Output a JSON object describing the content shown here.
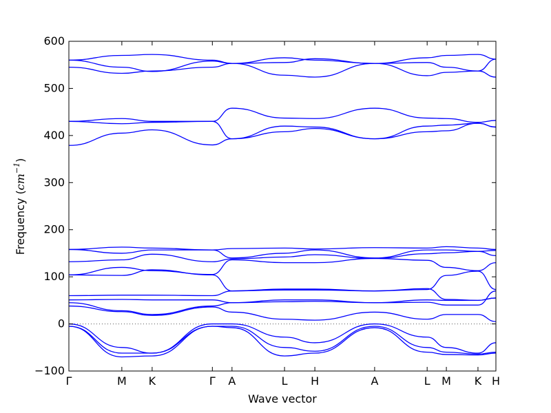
{
  "chart_data": {
    "type": "line",
    "title": "",
    "xlabel": "Wave vector",
    "ylabel_text": "Frequency (",
    "ylabel_unit": "cm",
    "ylabel_exp": "−1",
    "ylabel_close": ")",
    "ylim": [
      -100,
      600
    ],
    "yticks": [
      -100,
      0,
      100,
      200,
      300,
      400,
      500,
      600
    ],
    "ytick_labels": [
      "−100",
      "0",
      "100",
      "200",
      "300",
      "400",
      "500",
      "600"
    ],
    "x_range": [
      0,
      1
    ],
    "high_symmetry_points": [
      {
        "label": "Γ",
        "x": 0.0
      },
      {
        "label": "M",
        "x": 0.124
      },
      {
        "label": "K",
        "x": 0.195
      },
      {
        "label": "Γ",
        "x": 0.336
      },
      {
        "label": "A",
        "x": 0.382
      },
      {
        "label": "L",
        "x": 0.505
      },
      {
        "label": "H",
        "x": 0.576
      },
      {
        "label": "A",
        "x": 0.716
      },
      {
        "label": "L",
        "x": 0.839
      },
      {
        "label": "M",
        "x": 0.884
      },
      {
        "label": "K",
        "x": 0.958
      },
      {
        "label": "H",
        "x": 1.0
      }
    ],
    "zero_line": true,
    "grid": false,
    "line_color": "#0000ff",
    "series": [
      {
        "x": [
          0,
          0.124,
          0.195,
          0.336,
          0.382,
          0.505,
          0.576,
          0.716,
          0.839,
          0.884,
          0.958,
          1.0
        ],
        "y": [
          560,
          570,
          572,
          560,
          553,
          528,
          524,
          553,
          527,
          534,
          537,
          562
        ]
      },
      {
        "x": [
          0,
          0.124,
          0.195,
          0.336,
          0.382,
          0.505,
          0.576,
          0.716,
          0.839,
          0.884,
          0.958,
          1.0
        ],
        "y": [
          560,
          545,
          536,
          558,
          553,
          565,
          560,
          553,
          565,
          570,
          572,
          562
        ]
      },
      {
        "x": [
          0,
          0.124,
          0.195,
          0.336,
          0.382,
          0.505,
          0.576,
          0.716,
          0.839,
          0.884,
          0.958,
          1.0
        ],
        "y": [
          545,
          532,
          537,
          545,
          553,
          555,
          563,
          553,
          555,
          545,
          537,
          524
        ]
      },
      {
        "x": [
          0,
          0.124,
          0.195,
          0.336,
          0.382,
          0.505,
          0.576,
          0.716,
          0.839,
          0.884,
          0.958,
          1.0
        ],
        "y": [
          430,
          436,
          430,
          430,
          458,
          437,
          436,
          458,
          437,
          436,
          428,
          432
        ]
      },
      {
        "x": [
          0,
          0.124,
          0.195,
          0.336,
          0.382,
          0.505,
          0.576,
          0.716,
          0.839,
          0.884,
          0.958,
          1.0
        ],
        "y": [
          430,
          425,
          428,
          430,
          393,
          420,
          418,
          393,
          420,
          422,
          426,
          418
        ]
      },
      {
        "x": [
          0,
          0.124,
          0.195,
          0.336,
          0.382,
          0.505,
          0.576,
          0.716,
          0.839,
          0.884,
          0.958,
          1.0
        ],
        "y": [
          379,
          405,
          412,
          380,
          393,
          408,
          415,
          393,
          408,
          410,
          426,
          418
        ]
      },
      {
        "x": [
          0,
          0.124,
          0.195,
          0.336,
          0.382,
          0.505,
          0.576,
          0.716,
          0.839,
          0.884,
          0.958,
          1.0
        ],
        "y": [
          158,
          163,
          161,
          157,
          160,
          161,
          159,
          162,
          161,
          164,
          161,
          158
        ]
      },
      {
        "x": [
          0,
          0.124,
          0.195,
          0.336,
          0.382,
          0.505,
          0.576,
          0.716,
          0.839,
          0.884,
          0.958,
          1.0
        ],
        "y": [
          158,
          150,
          157,
          157,
          140,
          150,
          157,
          140,
          157,
          157,
          154,
          156
        ]
      },
      {
        "x": [
          0,
          0.124,
          0.195,
          0.336,
          0.382,
          0.505,
          0.576,
          0.716,
          0.839,
          0.884,
          0.958,
          1.0
        ],
        "y": [
          132,
          136,
          148,
          132,
          138,
          142,
          147,
          139,
          149,
          151,
          154,
          145
        ]
      },
      {
        "x": [
          0,
          0.124,
          0.195,
          0.336,
          0.382,
          0.505,
          0.576,
          0.716,
          0.839,
          0.884,
          0.958,
          1.0
        ],
        "y": [
          104,
          120,
          113,
          105,
          136,
          130,
          130,
          139,
          135,
          120,
          113,
          130
        ]
      },
      {
        "x": [
          0,
          0.124,
          0.195,
          0.336,
          0.382,
          0.505,
          0.576,
          0.716,
          0.839,
          0.884,
          0.958,
          1.0
        ],
        "y": [
          104,
          103,
          115,
          104,
          70,
          72,
          72,
          70,
          73,
          103,
          112,
          73
        ]
      },
      {
        "x": [
          0,
          0.124,
          0.195,
          0.336,
          0.382,
          0.505,
          0.576,
          0.716,
          0.839,
          0.884,
          0.958,
          1.0
        ],
        "y": [
          60,
          61,
          61,
          60,
          70,
          74,
          74,
          70,
          75,
          52,
          50,
          55
        ]
      },
      {
        "x": [
          0,
          0.124,
          0.195,
          0.336,
          0.382,
          0.505,
          0.576,
          0.716,
          0.839,
          0.884,
          0.958,
          1.0
        ],
        "y": [
          51,
          52,
          51,
          51,
          45,
          51,
          51,
          45,
          51,
          50,
          50,
          55
        ]
      },
      {
        "x": [
          0,
          0.124,
          0.195,
          0.336,
          0.382,
          0.505,
          0.576,
          0.716,
          0.839,
          0.884,
          0.958,
          1.0
        ],
        "y": [
          45,
          28,
          20,
          38,
          45,
          47,
          48,
          45,
          46,
          40,
          40,
          70
        ]
      },
      {
        "x": [
          0,
          0.124,
          0.195,
          0.336,
          0.382,
          0.505,
          0.576,
          0.716,
          0.839,
          0.884,
          0.958,
          1.0
        ],
        "y": [
          38,
          26,
          18,
          36,
          25,
          10,
          8,
          25,
          10,
          20,
          20,
          5
        ]
      },
      {
        "x": [
          0,
          0.124,
          0.195,
          0.336,
          0.382,
          0.505,
          0.576,
          0.716,
          0.839,
          0.884,
          0.958,
          1.0
        ],
        "y": [
          0,
          -50,
          -62,
          0,
          0,
          -28,
          -40,
          0,
          -28,
          -50,
          -62,
          -40
        ]
      },
      {
        "x": [
          0,
          0.124,
          0.195,
          0.336,
          0.382,
          0.505,
          0.576,
          0.716,
          0.839,
          0.884,
          0.958,
          1.0
        ],
        "y": [
          -5,
          -62,
          -62,
          -5,
          -5,
          -50,
          -58,
          -5,
          -50,
          -60,
          -64,
          -60
        ]
      },
      {
        "x": [
          0,
          0.124,
          0.195,
          0.336,
          0.382,
          0.505,
          0.576,
          0.716,
          0.839,
          0.884,
          0.958,
          1.0
        ],
        "y": [
          -5,
          -70,
          -68,
          -5,
          -8,
          -68,
          -62,
          -8,
          -60,
          -65,
          -66,
          -62
        ]
      }
    ]
  }
}
